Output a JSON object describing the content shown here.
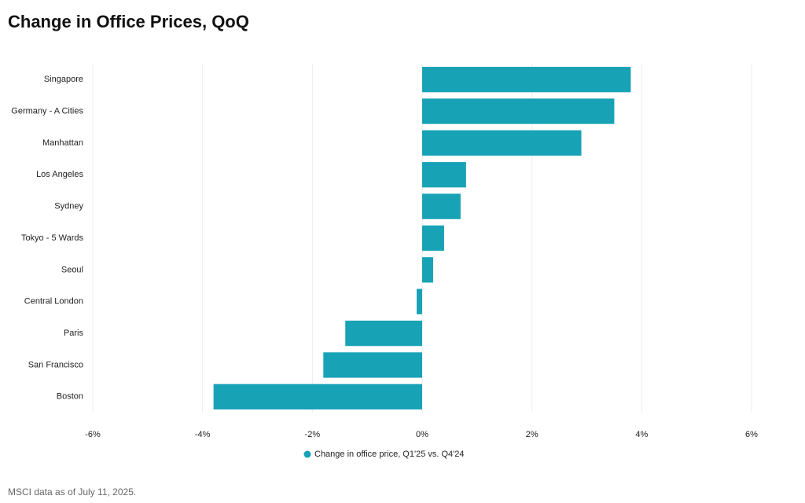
{
  "chart_data": {
    "type": "hbar",
    "title": "Change in Office Prices, QoQ",
    "categories": [
      "Singapore",
      "Germany - A Cities",
      "Manhattan",
      "Los Angeles",
      "Sydney",
      "Tokyo - 5 Wards",
      "Seoul",
      "Central London",
      "Paris",
      "San Francisco",
      "Boston"
    ],
    "series": [
      {
        "name": "Change in office price, Q1'25 vs. Q4'24",
        "color": "#17a2b6",
        "values": [
          3.8,
          3.5,
          2.9,
          0.8,
          0.7,
          0.4,
          0.2,
          -0.1,
          -1.4,
          -1.8,
          -3.8
        ]
      }
    ],
    "xlim": [
      -6,
      6
    ],
    "xticks": [
      {
        "value": -6,
        "label": "-6%"
      },
      {
        "value": -4,
        "label": "-4%"
      },
      {
        "value": -2,
        "label": "-2%"
      },
      {
        "value": 0,
        "label": "0%"
      },
      {
        "value": 2,
        "label": "2%"
      },
      {
        "value": 4,
        "label": "4%"
      },
      {
        "value": 6,
        "label": "6%"
      }
    ],
    "grid": true,
    "note": "MSCI data as of July 11, 2025."
  }
}
